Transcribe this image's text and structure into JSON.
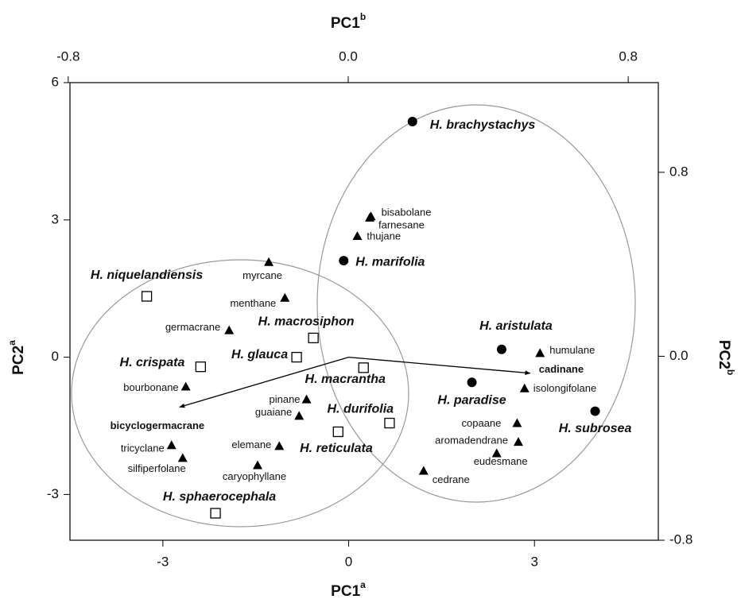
{
  "chart_data": {
    "type": "scatter",
    "x_label": "PC1",
    "x_label_sup": "a",
    "x2_label": "PC1",
    "x2_label_sup": "b",
    "y_label": "PC2",
    "y_label_sup": "a",
    "y2_label": "PC2",
    "y2_label_sup": "b",
    "xlim": [
      -4.5,
      5.0
    ],
    "xticks": [
      -3,
      0,
      3
    ],
    "ylim": [
      -4,
      6
    ],
    "yticks": [
      -3,
      0,
      3,
      6
    ],
    "x2lim": [
      -0.795,
      0.886
    ],
    "x2ticks": [
      -0.8,
      {
        "value": 0,
        "label": "0.0"
      },
      0.8
    ],
    "y2lim": [
      -0.8,
      1.19
    ],
    "y2ticks": [
      0.8,
      {
        "value": 0,
        "label": "0.0"
      },
      -0.8
    ],
    "series": [
      {
        "marker": "circle",
        "color": "#000000",
        "labels": [
          "H. brachystachys",
          "H. marifolia",
          "H. aristulata",
          "H. paradise",
          "H. subrosea"
        ],
        "x": [
          1.03,
          -0.08,
          2.47,
          1.99,
          3.98
        ],
        "y": [
          5.15,
          2.11,
          0.17,
          -0.55,
          -1.18
        ]
      },
      {
        "marker": "square",
        "color": "#000000",
        "labels": [
          "H. niquelandiensis",
          "H. crispata",
          "H. macrosiphon",
          "H. glauca",
          "H. macrantha",
          "H. durifolia",
          "H. reticulata",
          "H. sphaerocephala"
        ],
        "x": [
          -3.26,
          -2.39,
          -0.57,
          -0.84,
          0.24,
          -0.17,
          0.66,
          -2.15
        ],
        "y": [
          1.33,
          -0.21,
          0.42,
          0.0,
          -0.23,
          -1.63,
          -1.44,
          -3.41
        ]
      },
      {
        "marker": "triangle",
        "color": "#000000",
        "labels": [
          "bisabolane",
          "farnesane",
          "thujane",
          "myrcane",
          "menthane",
          "germacrane",
          "bourbonane",
          "pinane",
          "guaiane",
          "elemane",
          "caryophyllane",
          "tricyclane",
          "silfiperfolane",
          "humulane",
          "isolongifolane",
          "copaane",
          "aromadendrane",
          "eudesmane",
          "cedrane"
        ],
        "x": [
          0.36,
          0.34,
          0.14,
          -1.29,
          -1.03,
          -1.93,
          -2.63,
          -0.68,
          -0.8,
          -1.12,
          -1.47,
          -2.86,
          -2.68,
          3.09,
          2.84,
          2.72,
          2.74,
          2.39,
          1.21
        ],
        "y": [
          3.08,
          3.05,
          2.65,
          2.08,
          1.3,
          0.59,
          -0.64,
          -0.92,
          -1.28,
          -1.94,
          -2.36,
          -1.92,
          -2.2,
          0.09,
          -0.68,
          -1.44,
          -1.85,
          -2.1,
          -2.48
        ]
      }
    ],
    "vectors": {
      "labels": [
        "cadinane",
        "bicyclogermacrane"
      ],
      "x": [
        2.93,
        -2.73
      ],
      "y": [
        -0.35,
        -1.09
      ],
      "color": "#000000"
    }
  }
}
